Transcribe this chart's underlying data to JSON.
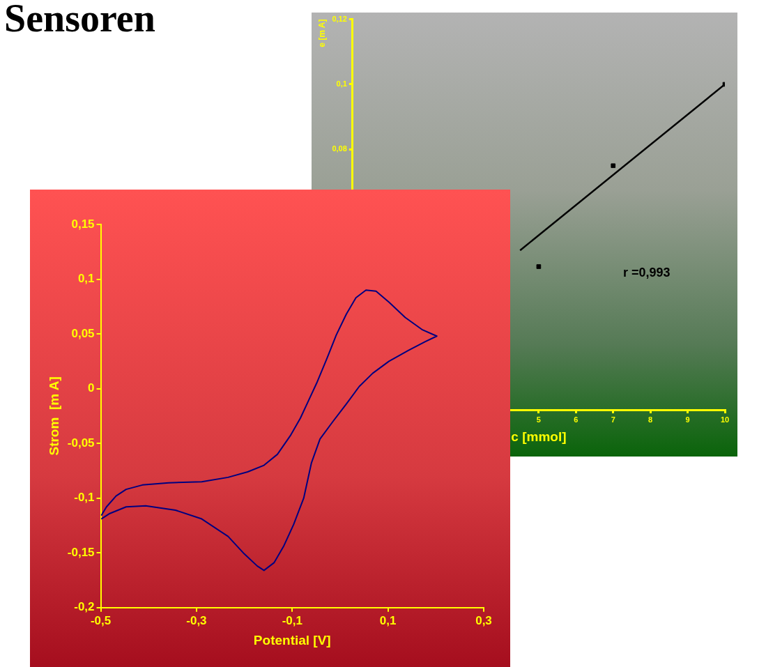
{
  "chart_data": [
    {
      "type": "scatter",
      "title": "Sensoren",
      "xlabel": "c [mmol]",
      "ylabel": "e [m A]",
      "series": [
        {
          "type": "line",
          "color": "#000000",
          "marker": "none",
          "x": [
            4.5,
            10
          ],
          "values": [
            0.049,
            0.1
          ]
        },
        {
          "color": "#000000",
          "x": [
            5,
            7,
            10
          ],
          "values": [
            0.044,
            0.075,
            0.1
          ]
        }
      ],
      "xlim": [
        0,
        10
      ],
      "xticks": [
        5,
        6,
        7,
        8,
        9,
        10
      ],
      "ylim": [
        0,
        0.12
      ],
      "yticks": [
        {
          "value": 0.08,
          "label": "0,08"
        },
        {
          "value": 0.1,
          "label": "0,1"
        },
        {
          "value": 0.12,
          "label": "0,12"
        }
      ],
      "annotations": [
        "r =0,993"
      ],
      "marker": "square",
      "grid": false,
      "legend": false
    },
    {
      "type": "line",
      "xlabel": "Potential [V]",
      "ylabel": "Strom  [m A]",
      "series": [
        {
          "color": "#000080",
          "x": [
            -0.499,
            -0.488,
            -0.468,
            -0.447,
            -0.413,
            -0.358,
            -0.289,
            -0.234,
            -0.193,
            -0.159,
            -0.131,
            -0.104,
            -0.083,
            -0.066,
            -0.049,
            -0.028,
            -0.008,
            0.013,
            0.033,
            0.054,
            0.075,
            0.102,
            0.136,
            0.171,
            0.202,
            0.178,
            0.143,
            0.102,
            0.068,
            0.04,
            0.013,
            -0.015,
            -0.042,
            -0.06,
            -0.076,
            -0.097,
            -0.118,
            -0.138,
            -0.159,
            -0.173,
            -0.2,
            -0.234,
            -0.289,
            -0.344,
            -0.406,
            -0.447,
            -0.481,
            -0.499
          ],
          "values": [
            -0.116,
            -0.108,
            -0.098,
            -0.092,
            -0.088,
            -0.086,
            -0.085,
            -0.081,
            -0.076,
            -0.07,
            -0.06,
            -0.043,
            -0.027,
            -0.011,
            0.005,
            0.027,
            0.049,
            0.068,
            0.083,
            0.09,
            0.089,
            0.079,
            0.065,
            0.054,
            0.048,
            0.043,
            0.035,
            0.025,
            0.014,
            0.002,
            -0.014,
            -0.03,
            -0.046,
            -0.068,
            -0.1,
            -0.124,
            -0.144,
            -0.159,
            -0.166,
            -0.162,
            -0.151,
            -0.135,
            -0.119,
            -0.111,
            -0.107,
            -0.108,
            -0.114,
            -0.119
          ]
        }
      ],
      "xlim": [
        -0.5,
        0.3
      ],
      "xticks": [
        {
          "value": -0.5,
          "label": "-0,5"
        },
        {
          "value": -0.3,
          "label": "-0,3"
        },
        {
          "value": -0.1,
          "label": "-0,1"
        },
        {
          "value": 0.1,
          "label": "0,1"
        },
        {
          "value": 0.3,
          "label": "0,3"
        }
      ],
      "ylim": [
        -0.2,
        0.15
      ],
      "yticks": [
        {
          "value": -0.2,
          "label": "-0,2"
        },
        {
          "value": -0.15,
          "label": "-0,15"
        },
        {
          "value": -0.1,
          "label": "-0,1"
        },
        {
          "value": -0.05,
          "label": "-0,05"
        },
        {
          "value": 0,
          "label": "0"
        },
        {
          "value": 0.05,
          "label": "0,05"
        },
        {
          "value": 0.1,
          "label": "0,1"
        },
        {
          "value": 0.15,
          "label": "0,15"
        }
      ],
      "marker": "none",
      "line_style": "solid",
      "grid": false,
      "legend": false
    }
  ]
}
